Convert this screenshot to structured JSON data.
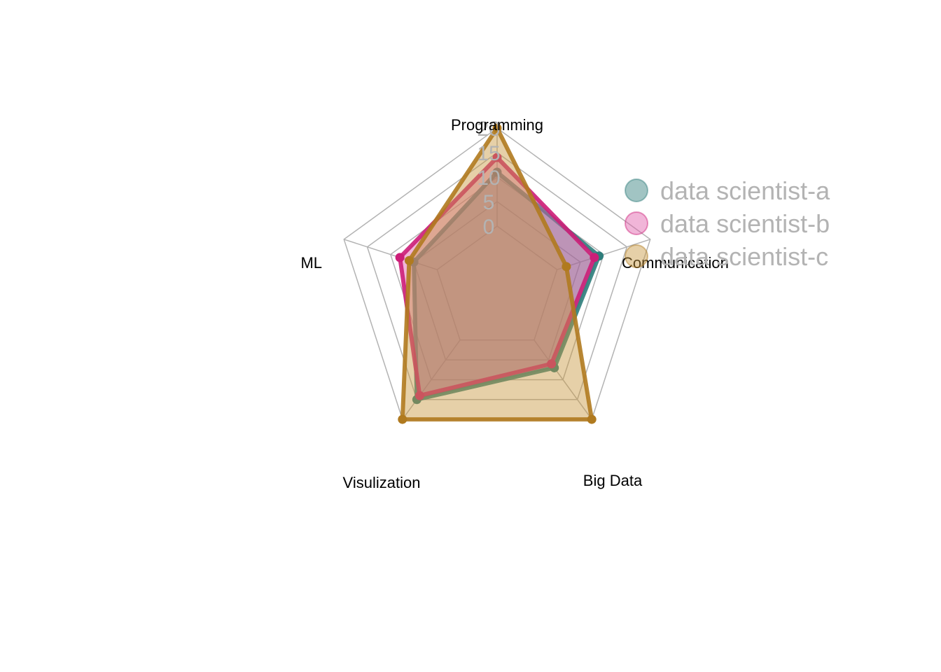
{
  "chart_data": {
    "type": "radar",
    "axes": [
      "Programming",
      "Communication",
      "Big Data",
      "Visulization",
      "ML"
    ],
    "range": [
      0,
      20
    ],
    "ticks": [
      "0",
      "5",
      "10",
      "15",
      "20"
    ],
    "series": [
      {
        "name": "data scientist-a",
        "values": [
          11,
          9,
          7,
          15,
          5
        ],
        "color": "#2e7d7b",
        "fill": "#2e7d7b"
      },
      {
        "name": "data scientist-b",
        "values": [
          14,
          8,
          6,
          14,
          8
        ],
        "color": "#cc1e78",
        "fill": "#e05aa8"
      },
      {
        "name": "data scientist-c",
        "values": [
          20,
          2,
          20,
          20,
          6
        ],
        "color": "#b07a1f",
        "fill": "#c8963e"
      }
    ],
    "legend_position": "top-right",
    "grid": true
  }
}
